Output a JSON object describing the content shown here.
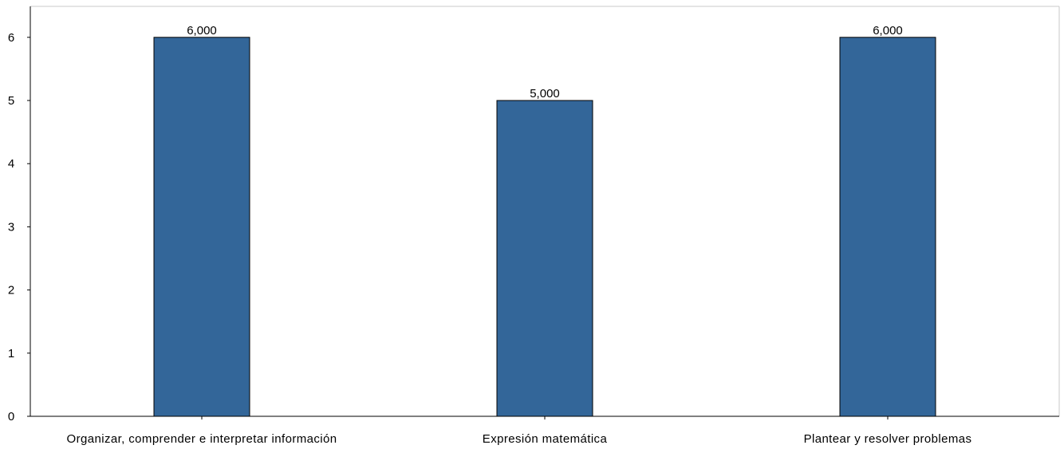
{
  "chart_data": {
    "type": "bar",
    "categories": [
      "Organizar, comprender e interpretar información",
      "Expresión matemática",
      "Plantear y resolver problemas"
    ],
    "values": [
      6,
      5,
      6
    ],
    "data_labels": [
      "6,000",
      "5,000",
      "6,000"
    ],
    "yticks": [
      "0",
      "1",
      "2",
      "3",
      "4",
      "5",
      "6"
    ],
    "ylim": [
      0,
      6.5
    ],
    "grid": false,
    "colors": {
      "bar_fill": "#336699",
      "bar_stroke": "#000000",
      "axis": "#000000",
      "frame": "#c8c8c8"
    }
  }
}
